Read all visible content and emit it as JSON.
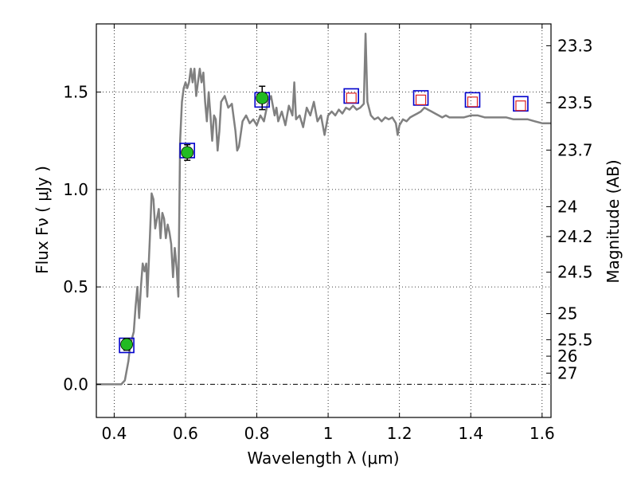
{
  "chart_data": {
    "type": "line",
    "title": "",
    "xlabel": "Wavelength  λ (μm)",
    "ylabel": "Flux  Fν  ( μJy )",
    "ylabel_right": "Magnitude (AB)",
    "xlim": [
      0.35,
      1.625
    ],
    "ylim": [
      -0.17,
      1.85
    ],
    "x_ticks": [
      0.4,
      0.6,
      0.8,
      1.0,
      1.2,
      1.4,
      1.6
    ],
    "x_tick_labels": [
      "0.4",
      "0.6",
      "0.8",
      "1",
      "1.2",
      "1.4",
      "1.6"
    ],
    "y_ticks": [
      0.0,
      0.5,
      1.0,
      1.5
    ],
    "y_tick_labels": [
      "0.0",
      "0.5",
      "1.0",
      "1.5"
    ],
    "magnitude_ticks": [
      "23.3",
      "23.5",
      "23.7",
      "24",
      "24.2",
      "24.5",
      "25",
      "25.5",
      "26",
      "27"
    ],
    "grid": true,
    "zero_line": true,
    "colors": {
      "spectrum": "#808080",
      "model_box": "#0000cc",
      "observed": "#22bb22",
      "upper_limit": "#dd2222",
      "errorbar": "#000000"
    },
    "series": [
      {
        "name": "template spectrum",
        "style": "line",
        "points": [
          [
            0.35,
            0.0
          ],
          [
            0.42,
            0.0
          ],
          [
            0.43,
            0.02
          ],
          [
            0.44,
            0.12
          ],
          [
            0.445,
            0.2
          ],
          [
            0.455,
            0.27
          ],
          [
            0.46,
            0.4
          ],
          [
            0.465,
            0.5
          ],
          [
            0.47,
            0.34
          ],
          [
            0.475,
            0.5
          ],
          [
            0.48,
            0.62
          ],
          [
            0.485,
            0.58
          ],
          [
            0.49,
            0.62
          ],
          [
            0.493,
            0.45
          ],
          [
            0.5,
            0.75
          ],
          [
            0.505,
            0.98
          ],
          [
            0.51,
            0.95
          ],
          [
            0.515,
            0.8
          ],
          [
            0.52,
            0.85
          ],
          [
            0.525,
            0.9
          ],
          [
            0.53,
            0.75
          ],
          [
            0.535,
            0.88
          ],
          [
            0.54,
            0.85
          ],
          [
            0.545,
            0.75
          ],
          [
            0.55,
            0.82
          ],
          [
            0.555,
            0.78
          ],
          [
            0.56,
            0.72
          ],
          [
            0.565,
            0.55
          ],
          [
            0.57,
            0.7
          ],
          [
            0.575,
            0.6
          ],
          [
            0.58,
            0.45
          ],
          [
            0.585,
            1.25
          ],
          [
            0.59,
            1.45
          ],
          [
            0.595,
            1.52
          ],
          [
            0.6,
            1.55
          ],
          [
            0.605,
            1.52
          ],
          [
            0.61,
            1.55
          ],
          [
            0.615,
            1.62
          ],
          [
            0.62,
            1.55
          ],
          [
            0.625,
            1.62
          ],
          [
            0.63,
            1.48
          ],
          [
            0.635,
            1.55
          ],
          [
            0.64,
            1.62
          ],
          [
            0.645,
            1.55
          ],
          [
            0.65,
            1.6
          ],
          [
            0.655,
            1.45
          ],
          [
            0.66,
            1.35
          ],
          [
            0.665,
            1.5
          ],
          [
            0.67,
            1.38
          ],
          [
            0.675,
            1.25
          ],
          [
            0.68,
            1.38
          ],
          [
            0.685,
            1.36
          ],
          [
            0.69,
            1.2
          ],
          [
            0.695,
            1.3
          ],
          [
            0.7,
            1.45
          ],
          [
            0.71,
            1.48
          ],
          [
            0.72,
            1.42
          ],
          [
            0.73,
            1.44
          ],
          [
            0.74,
            1.3
          ],
          [
            0.745,
            1.2
          ],
          [
            0.75,
            1.22
          ],
          [
            0.76,
            1.35
          ],
          [
            0.77,
            1.38
          ],
          [
            0.78,
            1.34
          ],
          [
            0.79,
            1.36
          ],
          [
            0.8,
            1.33
          ],
          [
            0.81,
            1.38
          ],
          [
            0.82,
            1.35
          ],
          [
            0.83,
            1.44
          ],
          [
            0.84,
            1.48
          ],
          [
            0.85,
            1.38
          ],
          [
            0.855,
            1.42
          ],
          [
            0.86,
            1.35
          ],
          [
            0.87,
            1.4
          ],
          [
            0.88,
            1.33
          ],
          [
            0.89,
            1.43
          ],
          [
            0.9,
            1.38
          ],
          [
            0.905,
            1.55
          ],
          [
            0.91,
            1.36
          ],
          [
            0.92,
            1.38
          ],
          [
            0.93,
            1.32
          ],
          [
            0.94,
            1.42
          ],
          [
            0.95,
            1.38
          ],
          [
            0.96,
            1.45
          ],
          [
            0.97,
            1.35
          ],
          [
            0.98,
            1.38
          ],
          [
            0.99,
            1.28
          ],
          [
            1.0,
            1.38
          ],
          [
            1.01,
            1.4
          ],
          [
            1.02,
            1.38
          ],
          [
            1.03,
            1.41
          ],
          [
            1.04,
            1.39
          ],
          [
            1.05,
            1.42
          ],
          [
            1.06,
            1.41
          ],
          [
            1.07,
            1.43
          ],
          [
            1.08,
            1.41
          ],
          [
            1.09,
            1.42
          ],
          [
            1.1,
            1.44
          ],
          [
            1.105,
            1.8
          ],
          [
            1.11,
            1.45
          ],
          [
            1.12,
            1.38
          ],
          [
            1.13,
            1.36
          ],
          [
            1.14,
            1.37
          ],
          [
            1.15,
            1.35
          ],
          [
            1.16,
            1.37
          ],
          [
            1.17,
            1.36
          ],
          [
            1.18,
            1.37
          ],
          [
            1.19,
            1.34
          ],
          [
            1.195,
            1.28
          ],
          [
            1.2,
            1.33
          ],
          [
            1.21,
            1.36
          ],
          [
            1.22,
            1.35
          ],
          [
            1.23,
            1.37
          ],
          [
            1.24,
            1.38
          ],
          [
            1.25,
            1.39
          ],
          [
            1.26,
            1.4
          ],
          [
            1.27,
            1.42
          ],
          [
            1.28,
            1.41
          ],
          [
            1.29,
            1.4
          ],
          [
            1.3,
            1.39
          ],
          [
            1.31,
            1.38
          ],
          [
            1.32,
            1.37
          ],
          [
            1.33,
            1.38
          ],
          [
            1.34,
            1.37
          ],
          [
            1.36,
            1.37
          ],
          [
            1.38,
            1.37
          ],
          [
            1.4,
            1.38
          ],
          [
            1.42,
            1.38
          ],
          [
            1.44,
            1.37
          ],
          [
            1.46,
            1.37
          ],
          [
            1.48,
            1.37
          ],
          [
            1.5,
            1.37
          ],
          [
            1.52,
            1.36
          ],
          [
            1.54,
            1.36
          ],
          [
            1.56,
            1.36
          ],
          [
            1.58,
            1.35
          ],
          [
            1.6,
            1.34
          ],
          [
            1.625,
            1.34
          ]
        ]
      },
      {
        "name": "model photometry",
        "style": "open-square",
        "color": "#0000cc",
        "x": [
          0.435,
          0.605,
          0.815,
          1.065,
          1.26,
          1.405,
          1.54
        ],
        "y": [
          0.2,
          1.2,
          1.46,
          1.48,
          1.47,
          1.46,
          1.44
        ]
      },
      {
        "name": "observed photometry",
        "style": "filled-circle",
        "color": "#22bb22",
        "x": [
          0.435,
          0.605,
          0.815
        ],
        "y": [
          0.205,
          1.19,
          1.47
        ],
        "yerr": [
          0.03,
          0.04,
          0.06
        ]
      },
      {
        "name": "upper limits",
        "style": "small-open-square",
        "color": "#dd2222",
        "x": [
          1.065,
          1.26,
          1.405,
          1.54
        ],
        "y": [
          1.47,
          1.46,
          1.45,
          1.43
        ]
      }
    ]
  }
}
